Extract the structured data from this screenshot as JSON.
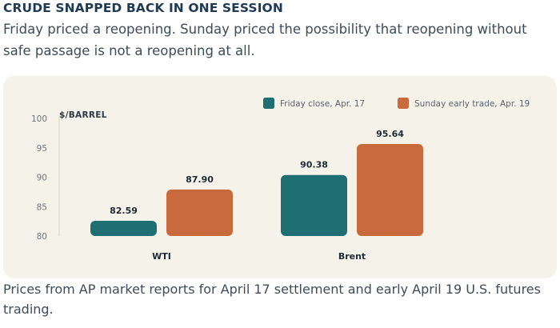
{
  "headline": "CRUDE SNAPPED BACK IN ONE SESSION",
  "dek": "Friday priced a reopening. Sunday priced the possibility that reopening without safe passage is not a reopening at all.",
  "footnote": "Prices from AP market reports for April 17 settlement and early April 19 U.S. futures trading.",
  "colors": {
    "friday": "#1f6f72",
    "sunday": "#c96a3c",
    "panel_bg": "#f5f2e9",
    "gridline": "#d9d4c8"
  },
  "chart_data": {
    "type": "bar",
    "ylabel": "$/BARREL",
    "ylim": [
      80,
      100
    ],
    "yticks": [
      80,
      85,
      90,
      95,
      100
    ],
    "grid": false,
    "legend_position": "top-right",
    "categories": [
      "WTI",
      "Brent"
    ],
    "series": [
      {
        "name": "Friday close, Apr. 17",
        "color": "#1f6f72",
        "values": [
          82.59,
          90.38
        ],
        "labels": [
          "82.59",
          "90.38"
        ]
      },
      {
        "name": "Sunday early trade, Apr. 19",
        "color": "#c96a3c",
        "values": [
          87.9,
          95.64
        ],
        "labels": [
          "87.90",
          "95.64"
        ]
      }
    ]
  }
}
